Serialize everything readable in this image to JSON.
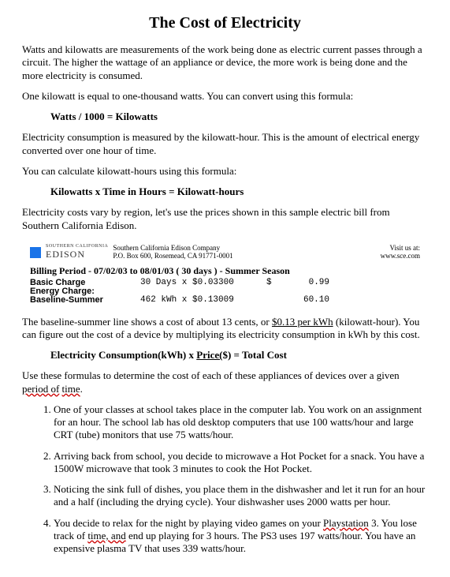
{
  "title": "The Cost of Electricity",
  "p1": "Watts and kilowatts are measurements of the work being done as electric current passes through a circuit.   The higher the wattage of an appliance or device, the more work is being done and the more electricity is consumed.",
  "p2": "One kilowatt is equal to one-thousand watts. You can convert using this formula:",
  "f1": "Watts / 1000 = Kilowatts",
  "p3": "Electricity consumption is measured by the kilowatt-hour.  This is the amount of electrical energy converted over one hour of time.",
  "p4": "You can calculate kilowatt-hours using this formula:",
  "f2": "Kilowatts x Time in Hours = Kilowatt-hours",
  "p5": "Electricity costs vary by region, let's use the prices shown in this sample electric bill from Southern California Edison.",
  "bill": {
    "logo_top": "SOUTHERN CALIFORNIA",
    "logo": "EDISON",
    "company": "Southern California Edison Company",
    "addr": "P.O. Box 600, Rosemead, CA 91771-0001",
    "visit1": "Visit us at:",
    "visit2": "www.sce.com",
    "period": "Billing Period - 07/02/03 to 08/01/03 ( 30 days )  - Summer Season",
    "row1_label": "Basic Charge",
    "row1_calc": "30 Days x $0.03300",
    "row1_cur": "$",
    "row1_amt": "0.99",
    "row2_label": "Energy Charge:",
    "row3_label": "Baseline-Summer",
    "row3_calc": "462 kWh  x $0.13009",
    "row3_amt": "60.10"
  },
  "p6a": "The baseline-summer line shows a cost of about 13 cents, or ",
  "p6u": "$0.13 per kWh",
  "p6b": " (kilowatt-hour).  You can figure out the cost of a device by multiplying its electricity consumption in kWh by this cost.",
  "f3a": "Electricity Consumption(kWh) x ",
  "f3u": "Price(",
  "f3b": "$) = Total Cost",
  "p7a": "Use these formulas to determine the cost of each of these appliances of devices over a given ",
  "p7w1": "period of",
  "p7w2": "time",
  "p7b": ".",
  "q1": "One of your classes at school takes place in the computer lab.   You work on an assignment for an hour. The school lab has old desktop computers that use 100 watts/hour and large CRT (tube) monitors that use 75 watts/hour.",
  "q2": "Arriving back from school, you decide to microwave a Hot Pocket for a snack.  You have a 1500W microwave that took 3 minutes to cook the Hot Pocket.",
  "q3": "Noticing the sink full of dishes, you place them in the dishwasher and let it run for an hour and a half (including the drying cycle).  Your dishwasher uses 2000 watts per hour.",
  "q4a": "You decide to relax for the night by playing video games on your ",
  "q4w1": "Playstation",
  "q4b": " 3.   You lose track of ",
  "q4w2": "time, and",
  "q4c": " end up playing for 3 hours.  The PS3 uses 197 watts/hour.  You have an expensive plasma TV that uses 339 watts/hour."
}
